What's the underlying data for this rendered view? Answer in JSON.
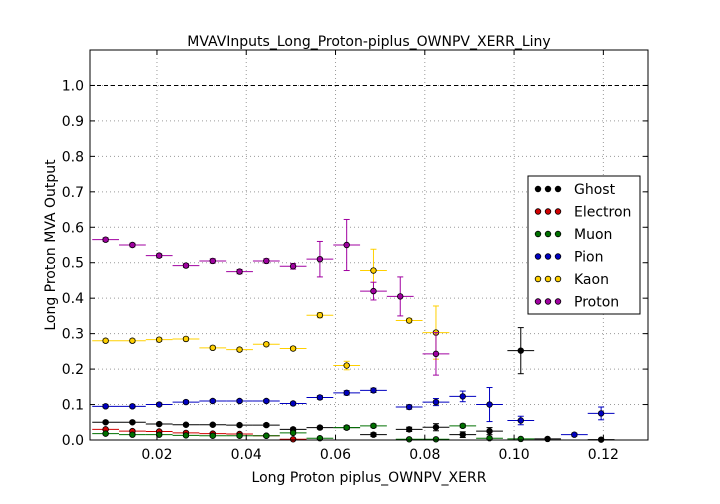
{
  "chart_data": {
    "type": "scatter",
    "title": "MVAVInputs_Long_Proton-piplus_OWNPV_XERR_Liny",
    "xlabel": "Long Proton piplus_OWNPV_XERR",
    "ylabel": "Long Proton MVA Output",
    "xlim": [
      0.005,
      0.13
    ],
    "ylim": [
      0.0,
      1.1
    ],
    "x_ticks": [
      "0.02",
      "0.04",
      "0.06",
      "0.08",
      "0.10",
      "0.12"
    ],
    "y_ticks": [
      "0.0",
      "0.1",
      "0.2",
      "0.3",
      "0.4",
      "0.5",
      "0.6",
      "0.7",
      "0.8",
      "0.9",
      "1.0"
    ],
    "grid": true,
    "reference_line": 1.0,
    "legend_position": "right",
    "series": [
      {
        "name": "Ghost",
        "color": "#000000",
        "points": [
          [
            0.0085,
            0.05,
            0.003
          ],
          [
            0.0145,
            0.05,
            0.003
          ],
          [
            0.0205,
            0.045,
            0.003
          ],
          [
            0.0265,
            0.043,
            0.003
          ],
          [
            0.0325,
            0.043,
            0.003
          ],
          [
            0.0385,
            0.042,
            0.003
          ],
          [
            0.0445,
            0.042,
            0.004
          ],
          [
            0.0505,
            0.03,
            0.004
          ],
          [
            0.0565,
            0.035,
            0.004
          ],
          [
            0.0625,
            0.035,
            0.005
          ],
          [
            0.0685,
            0.015,
            0.005
          ],
          [
            0.0765,
            0.03,
            0.006
          ],
          [
            0.0825,
            0.036,
            0.01
          ],
          [
            0.0885,
            0.015,
            0.008
          ],
          [
            0.0945,
            0.025,
            0.01
          ],
          [
            0.1015,
            0.252,
            0.065
          ],
          [
            0.1075,
            0.003,
            0.003
          ],
          [
            0.1195,
            0.001,
            0.002
          ]
        ]
      },
      {
        "name": "Electron",
        "color": "#d00000",
        "points": [
          [
            0.0085,
            0.03,
            0.003
          ],
          [
            0.0145,
            0.025,
            0.003
          ],
          [
            0.0205,
            0.024,
            0.003
          ],
          [
            0.0265,
            0.02,
            0.003
          ],
          [
            0.0325,
            0.018,
            0.003
          ],
          [
            0.0385,
            0.017,
            0.003
          ],
          [
            0.0445,
            0.012,
            0.003
          ],
          [
            0.0505,
            0.002,
            0.002
          ]
        ]
      },
      {
        "name": "Muon",
        "color": "#007000",
        "points": [
          [
            0.0085,
            0.018,
            0.003
          ],
          [
            0.0145,
            0.015,
            0.003
          ],
          [
            0.0205,
            0.015,
            0.003
          ],
          [
            0.0265,
            0.013,
            0.003
          ],
          [
            0.0325,
            0.012,
            0.003
          ],
          [
            0.0385,
            0.012,
            0.003
          ],
          [
            0.0445,
            0.012,
            0.003
          ],
          [
            0.0505,
            0.02,
            0.003
          ],
          [
            0.0565,
            0.005,
            0.003
          ],
          [
            0.0625,
            0.035,
            0.004
          ],
          [
            0.0685,
            0.04,
            0.005
          ],
          [
            0.0765,
            0.002,
            0.002
          ],
          [
            0.0825,
            0.002,
            0.002
          ],
          [
            0.0885,
            0.04,
            0.005
          ],
          [
            0.0945,
            0.005,
            0.003
          ],
          [
            0.1015,
            0.003,
            0.002
          ]
        ]
      },
      {
        "name": "Pion",
        "color": "#0000c0",
        "points": [
          [
            0.0085,
            0.095,
            0.004
          ],
          [
            0.0145,
            0.095,
            0.004
          ],
          [
            0.0205,
            0.1,
            0.004
          ],
          [
            0.0265,
            0.107,
            0.004
          ],
          [
            0.0325,
            0.11,
            0.004
          ],
          [
            0.0385,
            0.11,
            0.004
          ],
          [
            0.0445,
            0.11,
            0.004
          ],
          [
            0.0505,
            0.103,
            0.004
          ],
          [
            0.0565,
            0.12,
            0.005
          ],
          [
            0.0625,
            0.133,
            0.006
          ],
          [
            0.0685,
            0.14,
            0.006
          ],
          [
            0.0765,
            0.093,
            0.006
          ],
          [
            0.0825,
            0.107,
            0.01
          ],
          [
            0.0885,
            0.123,
            0.015
          ],
          [
            0.0945,
            0.1,
            0.048
          ],
          [
            0.1015,
            0.055,
            0.012
          ],
          [
            0.1135,
            0.015,
            0.004
          ],
          [
            0.1195,
            0.075,
            0.018
          ]
        ]
      },
      {
        "name": "Kaon",
        "color": "#ffd000",
        "points": [
          [
            0.0085,
            0.28,
            0.005
          ],
          [
            0.0145,
            0.28,
            0.005
          ],
          [
            0.0205,
            0.283,
            0.005
          ],
          [
            0.0265,
            0.285,
            0.005
          ],
          [
            0.0325,
            0.26,
            0.005
          ],
          [
            0.0385,
            0.255,
            0.005
          ],
          [
            0.0445,
            0.27,
            0.005
          ],
          [
            0.0505,
            0.258,
            0.005
          ],
          [
            0.0565,
            0.352,
            0.007
          ],
          [
            0.0625,
            0.21,
            0.012
          ],
          [
            0.0685,
            0.478,
            0.06
          ],
          [
            0.0765,
            0.337,
            0.006
          ],
          [
            0.0825,
            0.303,
            0.075
          ]
        ]
      },
      {
        "name": "Proton",
        "color": "#a000a0",
        "points": [
          [
            0.0085,
            0.565,
            0.005
          ],
          [
            0.0145,
            0.55,
            0.005
          ],
          [
            0.0205,
            0.52,
            0.005
          ],
          [
            0.0265,
            0.492,
            0.005
          ],
          [
            0.0325,
            0.505,
            0.006
          ],
          [
            0.0385,
            0.475,
            0.006
          ],
          [
            0.0445,
            0.505,
            0.006
          ],
          [
            0.0505,
            0.49,
            0.008
          ],
          [
            0.0565,
            0.51,
            0.05
          ],
          [
            0.0625,
            0.55,
            0.072
          ],
          [
            0.0685,
            0.42,
            0.025
          ],
          [
            0.0745,
            0.405,
            0.055
          ],
          [
            0.0825,
            0.243,
            0.06
          ]
        ]
      }
    ]
  }
}
